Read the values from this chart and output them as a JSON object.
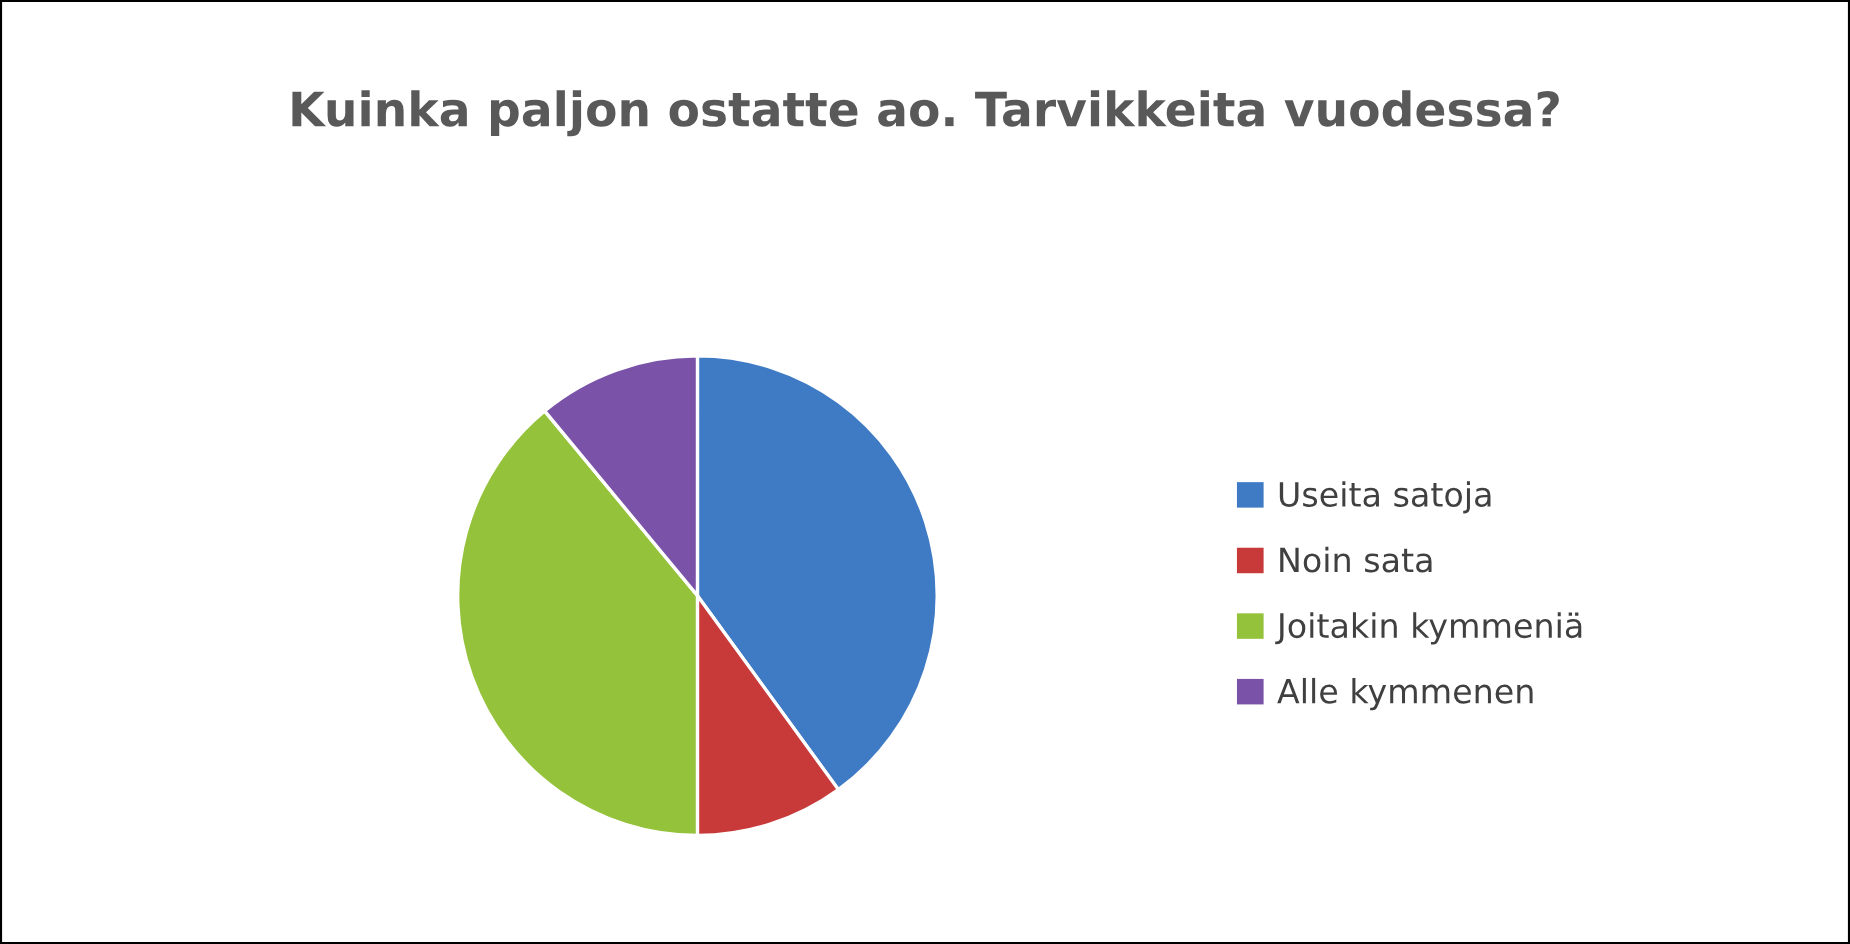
{
  "chart_data": {
    "type": "pie",
    "title": "Kuinka paljon ostatte ao. Tarvikkeita vuodessa?",
    "categories": [
      "Useita satoja",
      "Noin sata",
      "Joitakin kymmeniä",
      "Alle kymmenen"
    ],
    "values": [
      40,
      10,
      39,
      11
    ],
    "colors": [
      "#3f7bc4",
      "#c8393a",
      "#94c23a",
      "#7a53a8"
    ],
    "legend": "right"
  }
}
